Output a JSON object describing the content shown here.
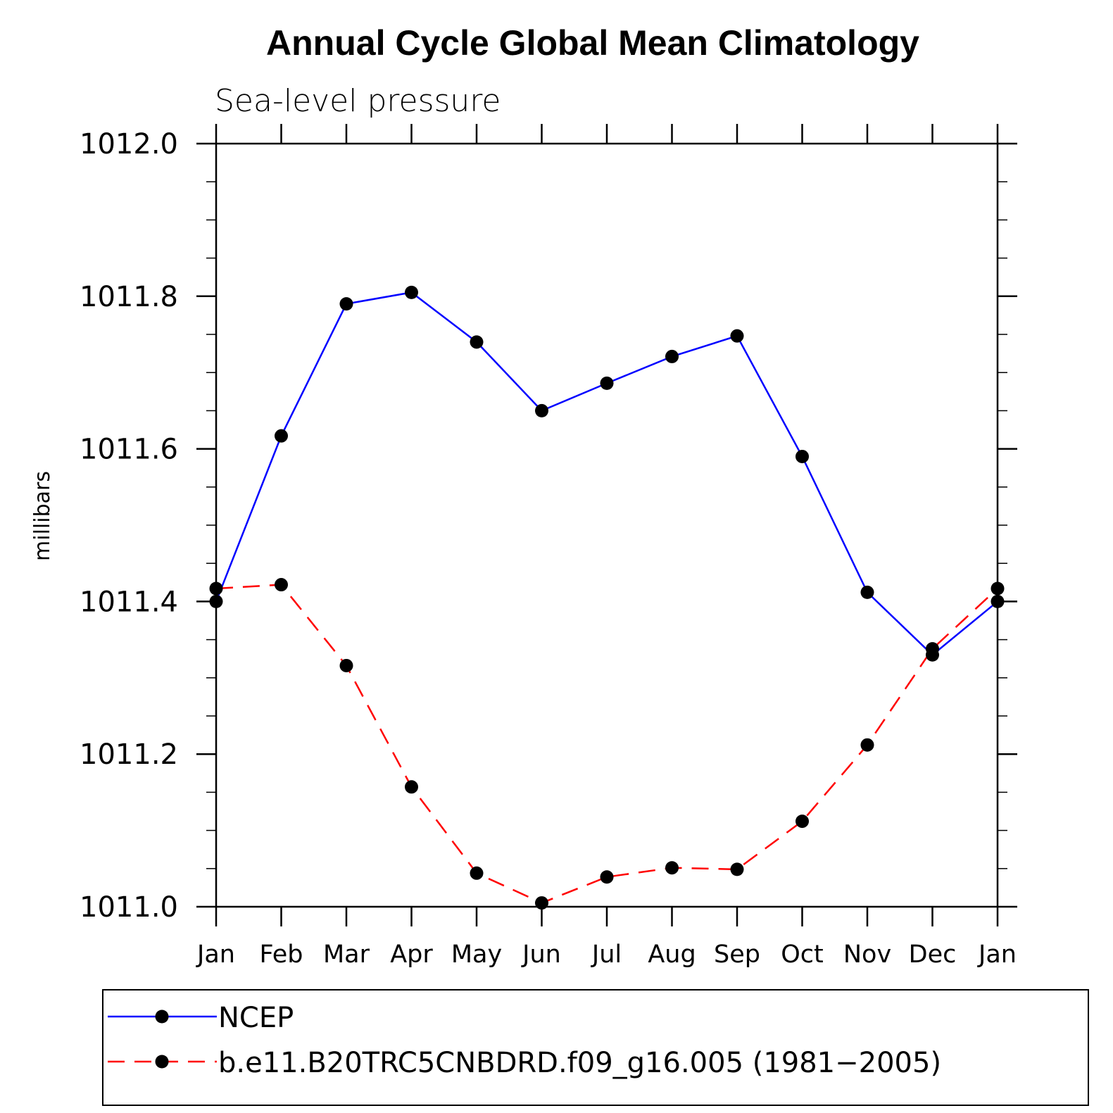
{
  "chart_data": {
    "type": "line",
    "title": "Annual Cycle Global Mean Climatology",
    "subtitle": "Sea-level pressure",
    "xlabel": "",
    "ylabel": "millibars",
    "categories": [
      "Jan",
      "Feb",
      "Mar",
      "Apr",
      "May",
      "Jun",
      "Jul",
      "Aug",
      "Sep",
      "Oct",
      "Nov",
      "Dec",
      "Jan"
    ],
    "ylim": [
      1011.0,
      1012.0
    ],
    "yticks": [
      1011.0,
      1011.2,
      1011.4,
      1011.6,
      1011.8,
      1012.0
    ],
    "ytick_labels": [
      "1011.0",
      "1011.2",
      "1011.4",
      "1011.6",
      "1011.8",
      "1012.0"
    ],
    "y_minor_step": 0.05,
    "legend_placement": "bottom",
    "series": [
      {
        "name": "NCEP",
        "color": "#0000ff",
        "dash": "solid",
        "values": [
          1011.4,
          1011.617,
          1011.79,
          1011.805,
          1011.74,
          1011.65,
          1011.686,
          1011.721,
          1011.748,
          1011.59,
          1011.412,
          1011.33,
          1011.4
        ]
      },
      {
        "name": "b.e11.B20TRC5CNBDRD.f09_g16.005 (1981−2005)",
        "color": "#ff0000",
        "dash": "dashed",
        "values": [
          1011.417,
          1011.422,
          1011.316,
          1011.157,
          1011.044,
          1011.005,
          1011.039,
          1011.051,
          1011.049,
          1011.112,
          1011.212,
          1011.338,
          1011.417
        ]
      }
    ]
  }
}
